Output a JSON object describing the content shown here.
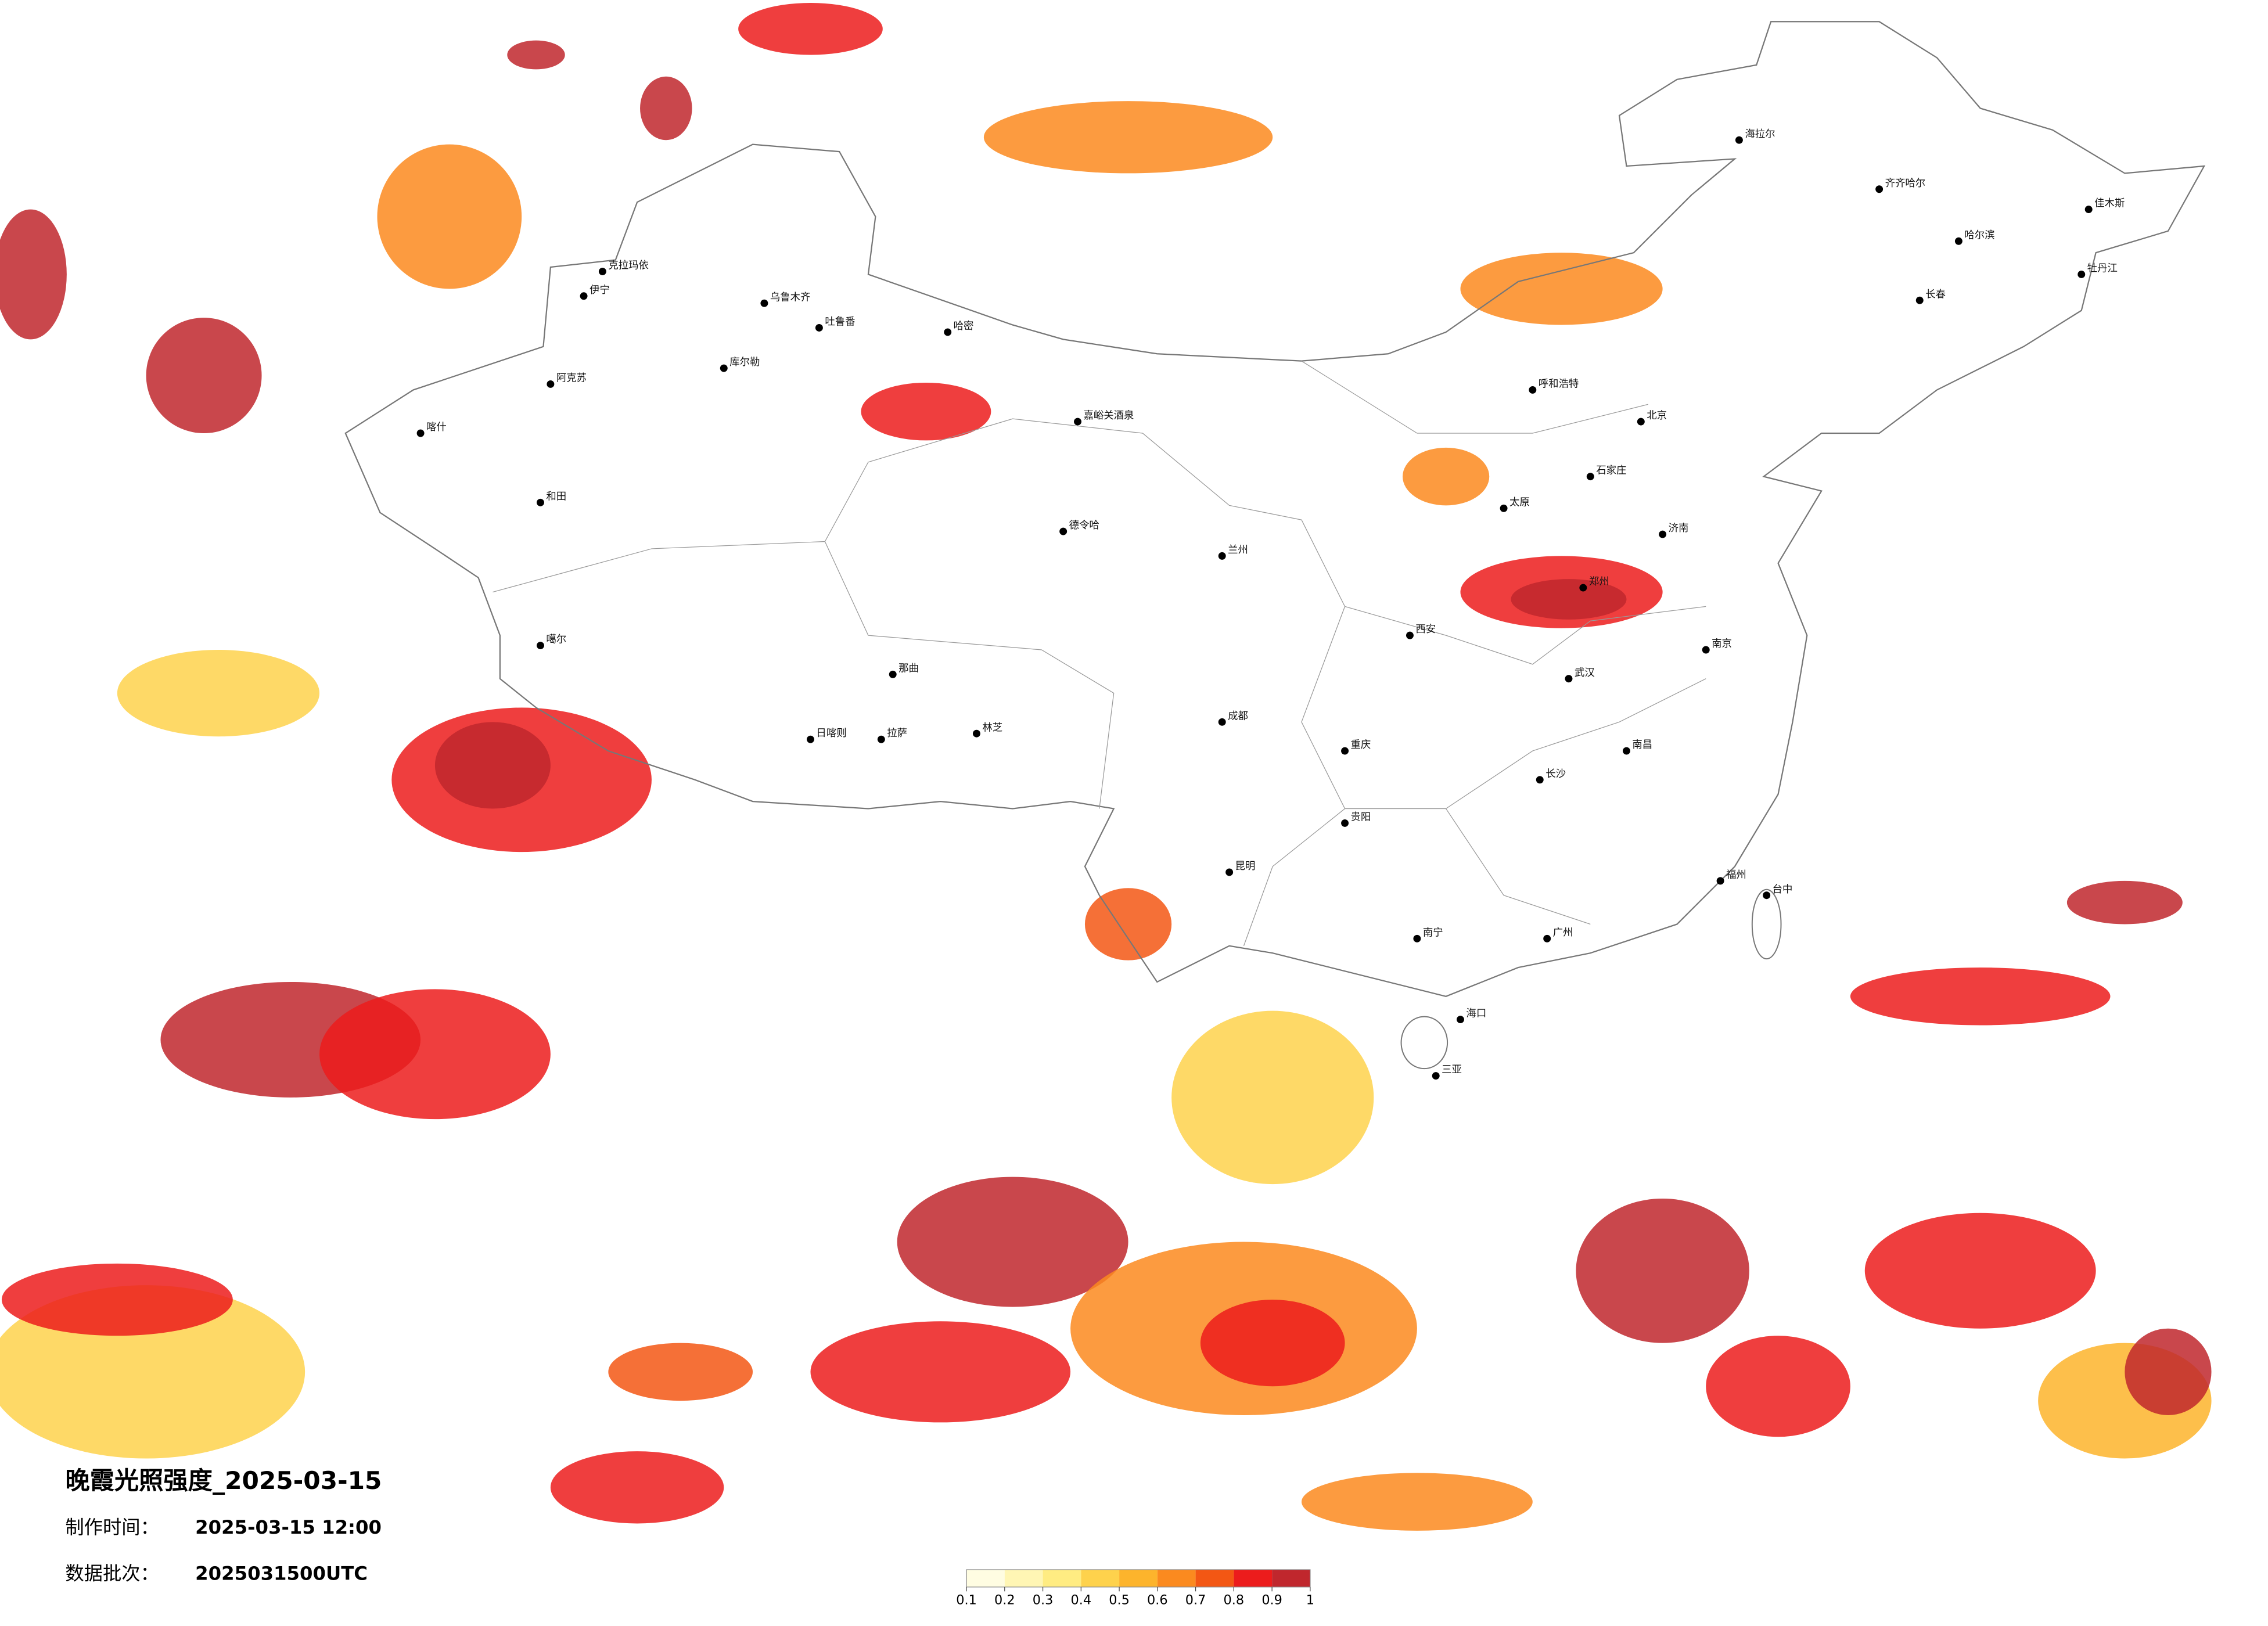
{
  "title": "晚霞光照强度_2025-03-15",
  "made_label": "制作时间：",
  "made_value": "2025-03-15 12:00",
  "batch_label": "数据批次：",
  "batch_value": "2025031500UTC",
  "colorbar": {
    "ticks": [
      0.1,
      0.2,
      0.3,
      0.4,
      0.5,
      0.6,
      0.7,
      0.8,
      0.9,
      1
    ],
    "colors": [
      "#fffde2",
      "#fff6b4",
      "#ffec82",
      "#fed24c",
      "#fdb42c",
      "#fb8a1f",
      "#f35714",
      "#ec1c1c",
      "#c0272d"
    ]
  },
  "cities": [
    "克拉玛依",
    "乌鲁木齐",
    "吐鲁番",
    "哈密",
    "库尔勒",
    "阿克苏",
    "喀什",
    "和田",
    "伊宁",
    "嘉峪关酒泉",
    "德令哈",
    "噶尔",
    "那曲",
    "日喀则",
    "拉萨",
    "林芝",
    "海拉尔",
    "齐齐哈尔",
    "哈尔滨",
    "佳木斯",
    "牡丹江",
    "长春",
    "呼和浩特",
    "北京",
    "石家庄",
    "太原",
    "济南",
    "兰州",
    "西安",
    "郑州",
    "南京",
    "武汉",
    "成都",
    "重庆",
    "贵阳",
    "昆明",
    "长沙",
    "南昌",
    "福州",
    "广州",
    "南宁",
    "海口",
    "三亚",
    "台中"
  ]
}
